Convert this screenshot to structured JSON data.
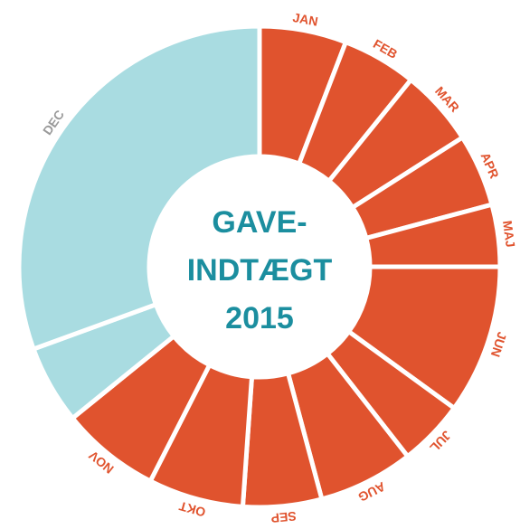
{
  "chart_data": {
    "type": "donut",
    "categories": [
      "JAN",
      "FEB",
      "MAR",
      "APR",
      "MAJ",
      "JUN",
      "JUL",
      "AUG",
      "SEP",
      "OKT",
      "NOV",
      null,
      "DEC"
    ],
    "values": [
      21,
      18,
      18.5,
      17.5,
      15,
      36,
      16,
      23,
      19,
      23,
      24,
      19,
      110
    ],
    "colors": [
      "#e0532e",
      "#e0532e",
      "#e0532e",
      "#e0532e",
      "#e0532e",
      "#e0532e",
      "#e0532e",
      "#e0532e",
      "#e0532e",
      "#e0532e",
      "#e0532e",
      "#a9dce1",
      "#a9dce1"
    ],
    "label_colors": [
      "#e0532e",
      "#e0532e",
      "#e0532e",
      "#e0532e",
      "#e0532e",
      "#e0532e",
      "#e0532e",
      "#e0532e",
      "#e0532e",
      "#e0532e",
      "#e0532e",
      null,
      "#9a9a9a"
    ],
    "center_text": [
      "GAVE-",
      "INDTÆGT",
      "2015"
    ]
  }
}
